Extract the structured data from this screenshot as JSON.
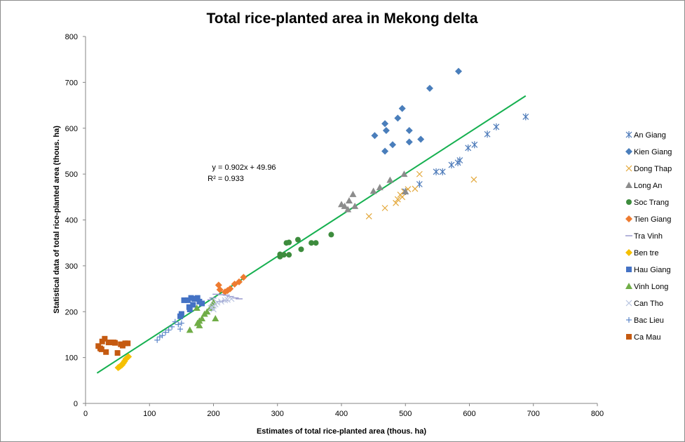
{
  "chart_data": {
    "type": "scatter",
    "title": "Total rice-planted area in Mekong delta",
    "xlabel": "Estimates of total rice-planted  area (thous. ha)",
    "ylabel": "Statistical data of total rice-planted area (thous. ha)",
    "xlim": [
      0,
      800
    ],
    "ylim": [
      0,
      800
    ],
    "xticks": [
      0,
      100,
      200,
      300,
      400,
      500,
      600,
      700,
      800
    ],
    "yticks": [
      0,
      100,
      200,
      300,
      400,
      500,
      600,
      700,
      800
    ],
    "grid": false,
    "legend_position": "right",
    "trendline": {
      "slope": 0.902,
      "intercept": 49.96,
      "x_range": [
        18,
        688
      ],
      "color": "#16b050",
      "equation": "y = 0.902x + 49.96",
      "r2_text": "R² = 0.933"
    },
    "series": [
      {
        "name": "An Giang",
        "marker": "asterisk",
        "color": "#4a78b8",
        "points": [
          [
            688,
            625
          ],
          [
            642,
            603
          ],
          [
            628,
            587
          ],
          [
            608,
            564
          ],
          [
            598,
            557
          ],
          [
            585,
            530
          ],
          [
            582,
            525
          ],
          [
            572,
            520
          ],
          [
            558,
            505
          ],
          [
            548,
            505
          ],
          [
            522,
            478
          ],
          [
            500,
            462
          ]
        ]
      },
      {
        "name": "Kien Giang",
        "marker": "diamond",
        "color": "#4a7ebb",
        "points": [
          [
            583,
            724
          ],
          [
            538,
            687
          ],
          [
            495,
            643
          ],
          [
            488,
            622
          ],
          [
            468,
            610
          ],
          [
            470,
            595
          ],
          [
            452,
            584
          ],
          [
            506,
            595
          ],
          [
            524,
            576
          ],
          [
            480,
            564
          ],
          [
            506,
            570
          ],
          [
            468,
            550
          ]
        ]
      },
      {
        "name": "Dong Thap",
        "marker": "x",
        "color": "#e3a83a",
        "points": [
          [
            607,
            488
          ],
          [
            522,
            500
          ],
          [
            515,
            468
          ],
          [
            504,
            467
          ],
          [
            498,
            462
          ],
          [
            492,
            455
          ],
          [
            495,
            450
          ],
          [
            488,
            445
          ],
          [
            485,
            437
          ],
          [
            468,
            426
          ],
          [
            443,
            408
          ]
        ]
      },
      {
        "name": "Long An",
        "marker": "triangle",
        "color": "#8c8c8c",
        "points": [
          [
            500,
            462
          ],
          [
            498,
            500
          ],
          [
            476,
            487
          ],
          [
            460,
            471
          ],
          [
            450,
            463
          ],
          [
            418,
            456
          ],
          [
            412,
            442
          ],
          [
            405,
            430
          ],
          [
            400,
            434
          ],
          [
            421,
            430
          ],
          [
            410,
            423
          ]
        ]
      },
      {
        "name": "Soc Trang",
        "marker": "circle",
        "color": "#3d8c3d",
        "points": [
          [
            384,
            368
          ],
          [
            360,
            350
          ],
          [
            353,
            350
          ],
          [
            332,
            357
          ],
          [
            337,
            336
          ],
          [
            318,
            351
          ],
          [
            314,
            350
          ],
          [
            318,
            324
          ],
          [
            310,
            324
          ],
          [
            304,
            320
          ],
          [
            304,
            325
          ]
        ]
      },
      {
        "name": "Tien Giang",
        "marker": "diamond",
        "color": "#ee7b30",
        "points": [
          [
            247,
            275
          ],
          [
            240,
            265
          ],
          [
            233,
            260
          ],
          [
            226,
            250
          ],
          [
            222,
            246
          ],
          [
            218,
            243
          ],
          [
            210,
            248
          ],
          [
            208,
            258
          ]
        ]
      },
      {
        "name": "Tra Vinh",
        "marker": "dash",
        "color": "#9b9bcf",
        "points": [
          [
            240,
            228
          ],
          [
            234,
            230
          ],
          [
            226,
            233
          ],
          [
            220,
            236
          ],
          [
            212,
            237
          ],
          [
            204,
            238
          ],
          [
            199,
            230
          ],
          [
            196,
            226
          ],
          [
            210,
            222
          ],
          [
            218,
            224
          ]
        ]
      },
      {
        "name": "Ben tre",
        "marker": "diamond",
        "color": "#f5c000",
        "points": [
          [
            67,
            102
          ],
          [
            63,
            97
          ],
          [
            61,
            92
          ],
          [
            59,
            88
          ],
          [
            57,
            84
          ],
          [
            55,
            82
          ],
          [
            53,
            80
          ],
          [
            51,
            78
          ]
        ]
      },
      {
        "name": "Hau Giang",
        "marker": "square",
        "color": "#4472c4",
        "points": [
          [
            175,
            230
          ],
          [
            170,
            228
          ],
          [
            165,
            230
          ],
          [
            160,
            225
          ],
          [
            154,
            225
          ],
          [
            182,
            218
          ],
          [
            168,
            215
          ],
          [
            162,
            210
          ],
          [
            163,
            205
          ],
          [
            150,
            195
          ],
          [
            148,
            190
          ],
          [
            178,
            222
          ]
        ]
      },
      {
        "name": "Vinh Long",
        "marker": "triangle",
        "color": "#70ad47",
        "points": [
          [
            200,
            220
          ],
          [
            197,
            213
          ],
          [
            195,
            208
          ],
          [
            190,
            200
          ],
          [
            186,
            195
          ],
          [
            182,
            185
          ],
          [
            178,
            180
          ],
          [
            175,
            175
          ],
          [
            178,
            170
          ],
          [
            203,
            185
          ],
          [
            163,
            160
          ],
          [
            174,
            208
          ]
        ]
      },
      {
        "name": "Can Tho",
        "marker": "x",
        "color": "#b9c4e0",
        "points": [
          [
            228,
            228
          ],
          [
            222,
            226
          ],
          [
            218,
            225
          ],
          [
            212,
            222
          ],
          [
            206,
            220
          ],
          [
            203,
            216
          ],
          [
            200,
            213
          ],
          [
            198,
            210
          ],
          [
            200,
            205
          ],
          [
            196,
            208
          ]
        ]
      },
      {
        "name": "Bac Lieu",
        "marker": "plus",
        "color": "#5b85c8",
        "points": [
          [
            150,
            175
          ],
          [
            145,
            172
          ],
          [
            140,
            178
          ],
          [
            135,
            167
          ],
          [
            130,
            160
          ],
          [
            125,
            155
          ],
          [
            120,
            148
          ],
          [
            116,
            145
          ],
          [
            112,
            138
          ],
          [
            148,
            162
          ]
        ]
      },
      {
        "name": "Ca Mau",
        "marker": "square",
        "color": "#c55a11",
        "points": [
          [
            20,
            125
          ],
          [
            23,
            120
          ],
          [
            26,
            135
          ],
          [
            30,
            141
          ],
          [
            36,
            133
          ],
          [
            40,
            133
          ],
          [
            46,
            132
          ],
          [
            55,
            129
          ],
          [
            58,
            126
          ],
          [
            62,
            131
          ],
          [
            66,
            131
          ],
          [
            25,
            118
          ],
          [
            32,
            112
          ],
          [
            50,
            110
          ],
          [
            44,
            133
          ]
        ]
      }
    ]
  }
}
